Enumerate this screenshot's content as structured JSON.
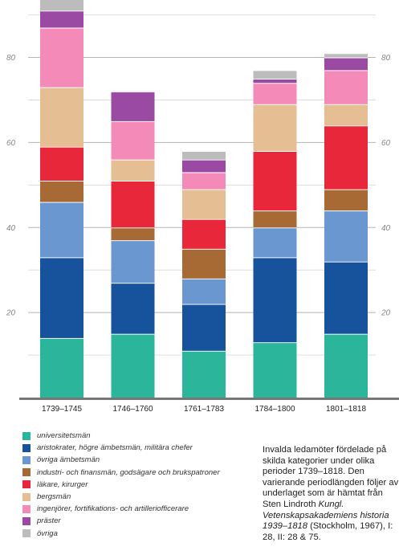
{
  "chart_data": {
    "type": "bar",
    "stacked": true,
    "categories": [
      "1739–1745",
      "1746–1760",
      "1761–1783",
      "1784–1800",
      "1801–1818"
    ],
    "ylim": [
      0,
      92
    ],
    "yticks": [
      20,
      40,
      60,
      80
    ],
    "grid": true,
    "legend_position": "bottom-left",
    "series": [
      {
        "name": "universitetsmän",
        "color": "#2bb59a",
        "values": [
          14,
          15,
          11,
          13,
          15
        ]
      },
      {
        "name": "aristokrater, högre ämbetsmän, militära chefer",
        "color": "#17529c",
        "values": [
          19,
          12,
          11,
          20,
          17
        ]
      },
      {
        "name": "övriga ämbetsmän",
        "color": "#6a97d0",
        "values": [
          13,
          10,
          6,
          7,
          12
        ]
      },
      {
        "name": "industri- och finansmän, godsägare och brukspatroner",
        "color": "#a86a35",
        "values": [
          5,
          3,
          7,
          4,
          5
        ]
      },
      {
        "name": "läkare, kirurger",
        "color": "#e8283a",
        "values": [
          8,
          11,
          7,
          14,
          15
        ]
      },
      {
        "name": "bergsmän",
        "color": "#e5bf93",
        "values": [
          14,
          5,
          7,
          11,
          5
        ]
      },
      {
        "name": "ingenjörer, fortifikations- och artilleriofficerare",
        "color": "#f48ab8",
        "values": [
          14,
          9,
          4,
          5,
          8
        ]
      },
      {
        "name": "präster",
        "color": "#9a4aa2",
        "values": [
          4,
          7,
          3,
          1,
          3
        ]
      },
      {
        "name": "övriga",
        "color": "#bcbcbc",
        "values": [
          4,
          0,
          2,
          2,
          1
        ]
      }
    ]
  },
  "caption": {
    "part1": "Invalda ledamöter fördelade på skilda kategorier under olika perioder 1739–1818. Den varierande periodlängden följer av underlaget som är hämtat från Sten Lindroth ",
    "title": "Kungl. Vetenskapsakademiens historia 1939–1818",
    "part2": " (Stockholm, 1967), I: 28, II: 28 & 75."
  }
}
